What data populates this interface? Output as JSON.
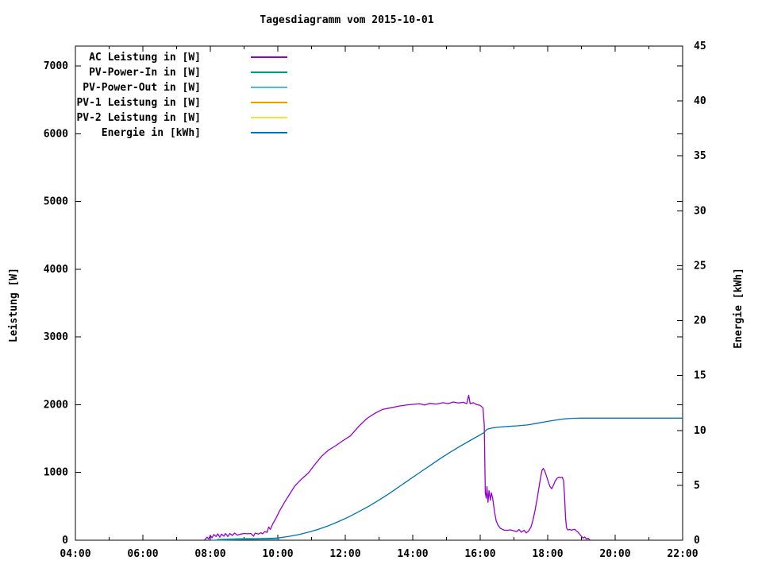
{
  "title": "Tagesdiagramm vom 2015-10-01",
  "chart_data": {
    "type": "line",
    "title": "Tagesdiagramm vom 2015-10-01",
    "background": "#ffffff",
    "grid": false,
    "legend_position": "top-left-inside",
    "x_axis": {
      "kind": "time",
      "min_hour": 4,
      "max_hour": 22,
      "major_step_hours": 2,
      "minor_step_hours": 1,
      "tick_labels": [
        "04:00",
        "06:00",
        "08:00",
        "10:00",
        "12:00",
        "14:00",
        "16:00",
        "18:00",
        "20:00",
        "22:00"
      ]
    },
    "y_left": {
      "label": "Leistung [W]",
      "min": 0,
      "max": 7293,
      "ticks": [
        0,
        1000,
        2000,
        3000,
        4000,
        5000,
        6000,
        7000
      ]
    },
    "y_right": {
      "label": "Energie [kWh]",
      "min": 0,
      "max": 45,
      "ticks": [
        0,
        5,
        10,
        15,
        20,
        25,
        30,
        35,
        40,
        45
      ]
    },
    "series": [
      {
        "id": "ac-leistung",
        "name": "AC Leistung in [W]",
        "color": "#9400d3",
        "axis": "left",
        "points": [
          [
            7.83,
            5
          ],
          [
            7.9,
            45
          ],
          [
            7.95,
            20
          ],
          [
            8.0,
            70
          ],
          [
            8.05,
            35
          ],
          [
            8.1,
            85
          ],
          [
            8.17,
            55
          ],
          [
            8.22,
            95
          ],
          [
            8.28,
            45
          ],
          [
            8.33,
            90
          ],
          [
            8.4,
            60
          ],
          [
            8.45,
            100
          ],
          [
            8.52,
            55
          ],
          [
            8.58,
            100
          ],
          [
            8.65,
            70
          ],
          [
            8.72,
            105
          ],
          [
            8.8,
            75
          ],
          [
            8.9,
            90
          ],
          [
            9.0,
            100
          ],
          [
            9.1,
            95
          ],
          [
            9.2,
            100
          ],
          [
            9.28,
            60
          ],
          [
            9.33,
            105
          ],
          [
            9.42,
            90
          ],
          [
            9.5,
            110
          ],
          [
            9.55,
            95
          ],
          [
            9.62,
            130
          ],
          [
            9.68,
            115
          ],
          [
            9.73,
            195
          ],
          [
            9.78,
            160
          ],
          [
            9.85,
            240
          ],
          [
            9.95,
            330
          ],
          [
            10.05,
            430
          ],
          [
            10.2,
            560
          ],
          [
            10.35,
            680
          ],
          [
            10.5,
            800
          ],
          [
            10.7,
            900
          ],
          [
            10.9,
            990
          ],
          [
            11.1,
            1120
          ],
          [
            11.3,
            1240
          ],
          [
            11.5,
            1330
          ],
          [
            11.7,
            1390
          ],
          [
            11.9,
            1460
          ],
          [
            12.15,
            1540
          ],
          [
            12.4,
            1680
          ],
          [
            12.65,
            1800
          ],
          [
            12.9,
            1880
          ],
          [
            13.1,
            1930
          ],
          [
            13.35,
            1955
          ],
          [
            13.6,
            1980
          ],
          [
            13.8,
            1995
          ],
          [
            14.0,
            2005
          ],
          [
            14.2,
            2015
          ],
          [
            14.35,
            1995
          ],
          [
            14.5,
            2020
          ],
          [
            14.7,
            2010
          ],
          [
            14.9,
            2030
          ],
          [
            15.05,
            2015
          ],
          [
            15.2,
            2040
          ],
          [
            15.35,
            2025
          ],
          [
            15.5,
            2035
          ],
          [
            15.6,
            2015
          ],
          [
            15.66,
            2140
          ],
          [
            15.7,
            2015
          ],
          [
            15.8,
            2030
          ],
          [
            15.9,
            2000
          ],
          [
            16.0,
            1990
          ],
          [
            16.08,
            1955
          ],
          [
            16.12,
            1700
          ],
          [
            16.15,
            700
          ],
          [
            16.18,
            620
          ],
          [
            16.2,
            790
          ],
          [
            16.23,
            560
          ],
          [
            16.26,
            730
          ],
          [
            16.3,
            590
          ],
          [
            16.33,
            700
          ],
          [
            16.37,
            620
          ],
          [
            16.42,
            430
          ],
          [
            16.47,
            290
          ],
          [
            16.53,
            220
          ],
          [
            16.6,
            175
          ],
          [
            16.7,
            150
          ],
          [
            16.8,
            145
          ],
          [
            16.9,
            152
          ],
          [
            17.0,
            140
          ],
          [
            17.08,
            128
          ],
          [
            17.15,
            158
          ],
          [
            17.22,
            118
          ],
          [
            17.3,
            148
          ],
          [
            17.36,
            108
          ],
          [
            17.43,
            135
          ],
          [
            17.5,
            190
          ],
          [
            17.56,
            290
          ],
          [
            17.62,
            430
          ],
          [
            17.68,
            590
          ],
          [
            17.73,
            740
          ],
          [
            17.78,
            900
          ],
          [
            17.83,
            1030
          ],
          [
            17.87,
            1060
          ],
          [
            17.92,
            1010
          ],
          [
            17.97,
            940
          ],
          [
            18.02,
            860
          ],
          [
            18.07,
            790
          ],
          [
            18.12,
            760
          ],
          [
            18.17,
            810
          ],
          [
            18.22,
            870
          ],
          [
            18.28,
            915
          ],
          [
            18.33,
            930
          ],
          [
            18.38,
            925
          ],
          [
            18.43,
            930
          ],
          [
            18.47,
            880
          ],
          [
            18.5,
            640
          ],
          [
            18.53,
            330
          ],
          [
            18.56,
            180
          ],
          [
            18.6,
            150
          ],
          [
            18.65,
            160
          ],
          [
            18.7,
            148
          ],
          [
            18.75,
            155
          ],
          [
            18.8,
            162
          ],
          [
            18.85,
            138
          ],
          [
            18.9,
            118
          ],
          [
            18.95,
            88
          ],
          [
            19.0,
            58
          ],
          [
            19.05,
            32
          ],
          [
            19.1,
            48
          ],
          [
            19.15,
            18
          ],
          [
            19.2,
            28
          ],
          [
            19.25,
            6
          ]
        ]
      },
      {
        "id": "pv-power-in",
        "name": "PV-Power-In in [W]",
        "color": "#009e73",
        "axis": "left",
        "points": [
          [
            8.2,
            12
          ],
          [
            8.5,
            18
          ],
          [
            8.8,
            22
          ],
          [
            9.1,
            24
          ],
          [
            9.4,
            24
          ],
          [
            9.7,
            26
          ],
          [
            9.95,
            30
          ],
          [
            10.05,
            34
          ]
        ]
      },
      {
        "id": "pv-power-out",
        "name": "PV-Power-Out in [W]",
        "color": "#56b4e9",
        "axis": "left",
        "points": [
          [
            8.25,
            6
          ],
          [
            8.6,
            9
          ],
          [
            9.0,
            10
          ],
          [
            9.4,
            10
          ],
          [
            9.8,
            11
          ],
          [
            10.05,
            13
          ]
        ]
      },
      {
        "id": "pv1-leistung",
        "name": "PV-1 Leistung in [W]",
        "color": "#e69f00",
        "axis": "left",
        "points": []
      },
      {
        "id": "pv2-leistung",
        "name": "PV-2 Leistung in [W]",
        "color": "#f0e442",
        "axis": "left",
        "points": []
      },
      {
        "id": "energie",
        "name": "Energie in [kWh]",
        "color": "#0072b2",
        "axis": "right",
        "points": [
          [
            8.0,
            0
          ],
          [
            8.3,
            0.01
          ],
          [
            8.6,
            0.03
          ],
          [
            9.0,
            0.06
          ],
          [
            9.4,
            0.1
          ],
          [
            9.7,
            0.14
          ],
          [
            10.0,
            0.2
          ],
          [
            10.3,
            0.33
          ],
          [
            10.6,
            0.5
          ],
          [
            10.9,
            0.72
          ],
          [
            11.2,
            1.0
          ],
          [
            11.5,
            1.32
          ],
          [
            11.8,
            1.7
          ],
          [
            12.1,
            2.12
          ],
          [
            12.4,
            2.6
          ],
          [
            12.7,
            3.1
          ],
          [
            13.0,
            3.66
          ],
          [
            13.3,
            4.25
          ],
          [
            13.6,
            4.88
          ],
          [
            13.9,
            5.52
          ],
          [
            14.2,
            6.15
          ],
          [
            14.5,
            6.78
          ],
          [
            14.8,
            7.4
          ],
          [
            15.1,
            8.0
          ],
          [
            15.4,
            8.55
          ],
          [
            15.7,
            9.08
          ],
          [
            16.0,
            9.6
          ],
          [
            16.1,
            9.78
          ],
          [
            16.2,
            10.1
          ],
          [
            16.35,
            10.22
          ],
          [
            16.5,
            10.28
          ],
          [
            16.8,
            10.36
          ],
          [
            17.1,
            10.42
          ],
          [
            17.4,
            10.5
          ],
          [
            17.7,
            10.66
          ],
          [
            18.0,
            10.82
          ],
          [
            18.3,
            10.97
          ],
          [
            18.5,
            11.05
          ],
          [
            18.7,
            11.1
          ],
          [
            19.0,
            11.12
          ],
          [
            20.0,
            11.12
          ],
          [
            21.0,
            11.12
          ],
          [
            22.0,
            11.12
          ]
        ]
      }
    ]
  }
}
